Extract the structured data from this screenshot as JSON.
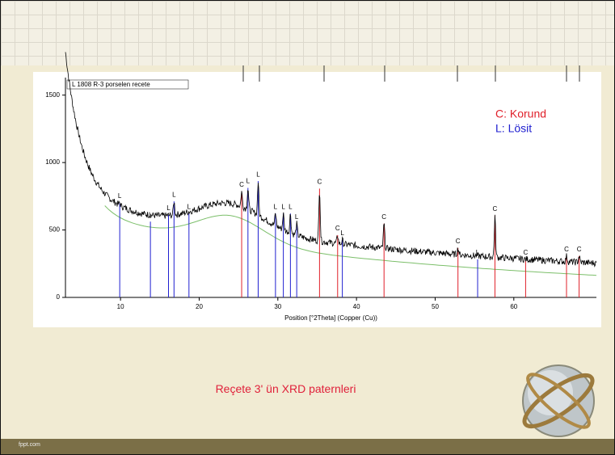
{
  "slide": {
    "caption": "Reçete 3' ün XRD paternleri",
    "footer": "fppt.com"
  },
  "plot": {
    "title": "L 1808 R-3 porselen recete",
    "x_label": "Position [°2Theta] (Copper (Cu))",
    "xlim": [
      3,
      70.5
    ],
    "ylim": [
      0,
      1630
    ],
    "xticks": [
      10,
      20,
      30,
      40,
      50,
      60
    ],
    "yticks": [
      0,
      500,
      1000,
      1500
    ],
    "series": [
      {
        "name": "C: Korund",
        "label": "C",
        "color": "#e0202a",
        "peaks": [
          {
            "x": 25.4,
            "y": 835
          },
          {
            "x": 35.3,
            "y": 855
          },
          {
            "x": 37.6,
            "y": 510
          },
          {
            "x": 43.5,
            "y": 595
          },
          {
            "x": 52.9,
            "y": 415
          },
          {
            "x": 57.6,
            "y": 655
          },
          {
            "x": 61.5,
            "y": 330
          },
          {
            "x": 66.7,
            "y": 355
          },
          {
            "x": 68.3,
            "y": 355
          }
        ]
      },
      {
        "name": "L: Lösit",
        "label": "L",
        "color": "#2020d0",
        "peaks": [
          {
            "x": 9.9,
            "y": 750
          },
          {
            "x": 13.8,
            "y": 610
          },
          {
            "x": 16.1,
            "y": 660
          },
          {
            "x": 16.8,
            "y": 760
          },
          {
            "x": 18.7,
            "y": 670
          },
          {
            "x": 26.2,
            "y": 860
          },
          {
            "x": 27.5,
            "y": 910
          },
          {
            "x": 29.7,
            "y": 670
          },
          {
            "x": 30.7,
            "y": 670
          },
          {
            "x": 31.6,
            "y": 670
          },
          {
            "x": 32.4,
            "y": 595
          },
          {
            "x": 38.2,
            "y": 475
          },
          {
            "x": 55.4,
            "y": 330
          }
        ]
      }
    ]
  }
}
